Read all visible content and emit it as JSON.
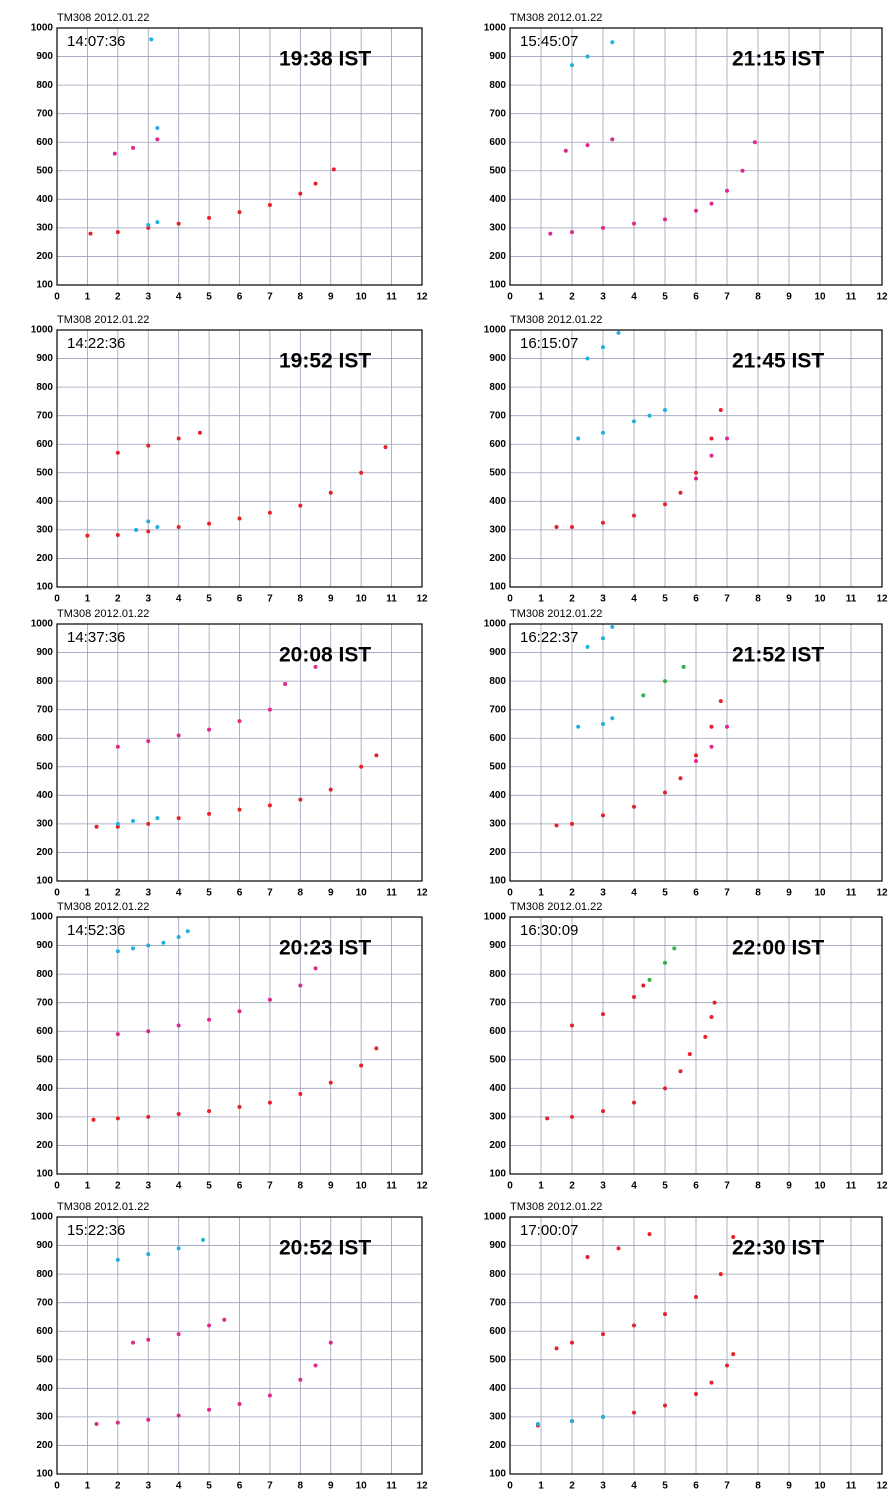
{
  "chart_data": [
    {
      "type": "scatter",
      "title": "TM308 2012.01.22",
      "annotations": [
        "14:07:36",
        "19:38 IST"
      ],
      "xlim": [
        0,
        12
      ],
      "ylim": [
        100,
        1000
      ],
      "xticks": [
        0,
        1,
        2,
        3,
        4,
        5,
        6,
        7,
        8,
        9,
        10,
        11,
        12
      ],
      "yticks": [
        100,
        200,
        300,
        400,
        500,
        600,
        700,
        800,
        900,
        1000
      ],
      "grid": true,
      "series": [
        {
          "color": "#e8202a",
          "x": [
            1.1,
            2,
            3,
            4,
            5,
            6,
            7,
            8,
            8.5,
            9.1
          ],
          "values": [
            280,
            285,
            300,
            315,
            335,
            355,
            380,
            420,
            455,
            505
          ]
        },
        {
          "color": "#e0288c",
          "x": [
            1.9,
            2.5,
            3.3
          ],
          "values": [
            560,
            580,
            610
          ]
        },
        {
          "color": "#1fb0e0",
          "x": [
            3,
            3.3,
            3.3,
            3.1
          ],
          "values": [
            310,
            320,
            650,
            960
          ]
        }
      ]
    },
    {
      "type": "scatter",
      "title": "TM308 2012.01.22",
      "annotations": [
        "15:45:07",
        "21:15 IST"
      ],
      "xlim": [
        0,
        12
      ],
      "ylim": [
        100,
        1000
      ],
      "xticks": [
        0,
        1,
        2,
        3,
        4,
        5,
        6,
        7,
        8,
        9,
        10,
        11,
        12
      ],
      "yticks": [
        100,
        200,
        300,
        400,
        500,
        600,
        700,
        800,
        900,
        1000
      ],
      "grid": true,
      "series": [
        {
          "color": "#e0288c",
          "x": [
            1.3,
            2,
            3,
            4,
            5,
            6,
            6.5,
            7,
            7.5,
            7.9
          ],
          "values": [
            280,
            285,
            300,
            315,
            330,
            360,
            385,
            430,
            500,
            600
          ]
        },
        {
          "color": "#e0288c",
          "x": [
            1.8,
            2.5,
            3.3
          ],
          "values": [
            570,
            590,
            610
          ]
        },
        {
          "color": "#1fb0e0",
          "x": [
            2,
            2.5,
            3.3
          ],
          "values": [
            870,
            900,
            950
          ]
        }
      ]
    },
    {
      "type": "scatter",
      "title": "TM308 2012.01.22",
      "annotations": [
        "14:22:36",
        "19:52 IST"
      ],
      "xlim": [
        0,
        12
      ],
      "ylim": [
        100,
        1000
      ],
      "xticks": [
        0,
        1,
        2,
        3,
        4,
        5,
        6,
        7,
        8,
        9,
        10,
        11,
        12
      ],
      "yticks": [
        100,
        200,
        300,
        400,
        500,
        600,
        700,
        800,
        900,
        1000
      ],
      "grid": true,
      "series": [
        {
          "color": "#e8202a",
          "x": [
            1,
            2,
            3,
            4,
            5,
            6,
            7,
            8,
            9,
            10,
            10.8
          ],
          "values": [
            280,
            282,
            295,
            310,
            322,
            340,
            360,
            385,
            430,
            500,
            590
          ]
        },
        {
          "color": "#e8202a",
          "x": [
            2,
            3,
            4,
            4.7
          ],
          "values": [
            570,
            595,
            620,
            640
          ]
        },
        {
          "color": "#1fb0e0",
          "x": [
            2.6,
            3,
            3.3
          ],
          "values": [
            300,
            330,
            310
          ]
        }
      ]
    },
    {
      "type": "scatter",
      "title": "TM308 2012.01.22",
      "annotations": [
        "16:15:07",
        "21:45 IST"
      ],
      "xlim": [
        0,
        12
      ],
      "ylim": [
        100,
        1000
      ],
      "xticks": [
        0,
        1,
        2,
        3,
        4,
        5,
        6,
        7,
        8,
        9,
        10,
        11,
        12
      ],
      "yticks": [
        100,
        200,
        300,
        400,
        500,
        600,
        700,
        800,
        900,
        1000
      ],
      "grid": true,
      "series": [
        {
          "color": "#e8202a",
          "x": [
            1.5,
            2,
            3,
            4,
            5,
            5.5,
            6,
            6.5,
            6.8
          ],
          "values": [
            310,
            310,
            325,
            350,
            390,
            430,
            500,
            620,
            720
          ]
        },
        {
          "color": "#e0288c",
          "x": [
            6,
            6.5,
            7
          ],
          "values": [
            480,
            560,
            620
          ]
        },
        {
          "color": "#1fb0e0",
          "x": [
            2.2,
            3,
            4,
            4.5,
            5
          ],
          "values": [
            620,
            640,
            680,
            700,
            720
          ]
        },
        {
          "color": "#1fb0e0",
          "x": [
            2.5,
            3,
            3.5
          ],
          "values": [
            900,
            940,
            990
          ]
        }
      ]
    },
    {
      "type": "scatter",
      "title": "TM308 2012.01.22",
      "annotations": [
        "14:37:36",
        "20:08 IST"
      ],
      "xlim": [
        0,
        12
      ],
      "ylim": [
        100,
        1000
      ],
      "xticks": [
        0,
        1,
        2,
        3,
        4,
        5,
        6,
        7,
        8,
        9,
        10,
        11,
        12
      ],
      "yticks": [
        100,
        200,
        300,
        400,
        500,
        600,
        700,
        800,
        900,
        1000
      ],
      "grid": true,
      "series": [
        {
          "color": "#e8202a",
          "x": [
            1.3,
            2,
            3,
            4,
            5,
            6,
            7,
            8,
            9,
            10,
            10.5
          ],
          "values": [
            290,
            290,
            300,
            320,
            335,
            350,
            365,
            385,
            420,
            500,
            540
          ]
        },
        {
          "color": "#e0288c",
          "x": [
            2,
            3,
            4,
            5,
            6,
            7,
            7.5,
            8.5
          ],
          "values": [
            570,
            590,
            610,
            630,
            660,
            700,
            790,
            850
          ]
        },
        {
          "color": "#1fb0e0",
          "x": [
            2,
            2.5,
            3.3
          ],
          "values": [
            300,
            310,
            320
          ]
        }
      ]
    },
    {
      "type": "scatter",
      "title": "TM308 2012.01.22",
      "annotations": [
        "16:22:37",
        "21:52 IST"
      ],
      "xlim": [
        0,
        12
      ],
      "ylim": [
        100,
        1000
      ],
      "xticks": [
        0,
        1,
        2,
        3,
        4,
        5,
        6,
        7,
        8,
        9,
        10,
        11,
        12
      ],
      "yticks": [
        100,
        200,
        300,
        400,
        500,
        600,
        700,
        800,
        900,
        1000
      ],
      "grid": true,
      "series": [
        {
          "color": "#e8202a",
          "x": [
            1.5,
            2,
            3,
            4,
            5,
            5.5,
            6,
            6.5,
            6.8
          ],
          "values": [
            295,
            300,
            330,
            360,
            410,
            460,
            540,
            640,
            730
          ]
        },
        {
          "color": "#e0288c",
          "x": [
            6,
            6.5,
            7
          ],
          "values": [
            520,
            570,
            640
          ]
        },
        {
          "color": "#1fb0e0",
          "x": [
            2.2,
            3,
            3.3
          ],
          "values": [
            640,
            650,
            670
          ]
        },
        {
          "color": "#2fb04a",
          "x": [
            4.3,
            5,
            5.6
          ],
          "values": [
            750,
            800,
            850
          ]
        },
        {
          "color": "#1fb0e0",
          "x": [
            2.5,
            3,
            3.3
          ],
          "values": [
            920,
            950,
            990
          ]
        }
      ]
    },
    {
      "type": "scatter",
      "title": "TM308 2012.01.22",
      "annotations": [
        "14:52:36",
        "20:23 IST"
      ],
      "xlim": [
        0,
        12
      ],
      "ylim": [
        100,
        1000
      ],
      "xticks": [
        0,
        1,
        2,
        3,
        4,
        5,
        6,
        7,
        8,
        9,
        10,
        11,
        12
      ],
      "yticks": [
        100,
        200,
        300,
        400,
        500,
        600,
        700,
        800,
        900,
        1000
      ],
      "grid": true,
      "series": [
        {
          "color": "#e8202a",
          "x": [
            1.2,
            2,
            3,
            4,
            5,
            6,
            7,
            8,
            9,
            10,
            10.5
          ],
          "values": [
            290,
            295,
            300,
            310,
            320,
            335,
            350,
            380,
            420,
            480,
            540
          ]
        },
        {
          "color": "#e0288c",
          "x": [
            2,
            3,
            4,
            5,
            6,
            7,
            8,
            8.5
          ],
          "values": [
            590,
            600,
            620,
            640,
            670,
            710,
            760,
            820
          ]
        },
        {
          "color": "#1fb0e0",
          "x": [
            2,
            2.5,
            3,
            3.5,
            4,
            4.3
          ],
          "values": [
            880,
            890,
            900,
            910,
            930,
            950
          ]
        }
      ]
    },
    {
      "type": "scatter",
      "title": "TM308 2012.01.22",
      "annotations": [
        "16:30:09",
        "22:00 IST"
      ],
      "xlim": [
        0,
        12
      ],
      "ylim": [
        100,
        1000
      ],
      "xticks": [
        0,
        1,
        2,
        3,
        4,
        5,
        6,
        7,
        8,
        9,
        10,
        11,
        12
      ],
      "yticks": [
        100,
        200,
        300,
        400,
        500,
        600,
        700,
        800,
        900,
        1000
      ],
      "grid": true,
      "series": [
        {
          "color": "#e8202a",
          "x": [
            1.2,
            2,
            3,
            4,
            5,
            5.5,
            5.8
          ],
          "values": [
            295,
            300,
            320,
            350,
            400,
            460,
            520
          ]
        },
        {
          "color": "#e8202a",
          "x": [
            6.3,
            6.5,
            6.6
          ],
          "values": [
            580,
            650,
            700
          ]
        },
        {
          "color": "#e8202a",
          "x": [
            2,
            3,
            4,
            4.3
          ],
          "values": [
            620,
            660,
            720,
            760
          ]
        },
        {
          "color": "#2fb04a",
          "x": [
            4.5,
            5,
            5.3
          ],
          "values": [
            780,
            840,
            890
          ]
        }
      ]
    },
    {
      "type": "scatter",
      "title": "TM308 2012.01.22",
      "annotations": [
        "15:22:36",
        "20:52 IST"
      ],
      "xlim": [
        0,
        12
      ],
      "ylim": [
        100,
        1000
      ],
      "xticks": [
        0,
        1,
        2,
        3,
        4,
        5,
        6,
        7,
        8,
        9,
        10,
        11,
        12
      ],
      "yticks": [
        100,
        200,
        300,
        400,
        500,
        600,
        700,
        800,
        900,
        1000
      ],
      "grid": true,
      "series": [
        {
          "color": "#e0288c",
          "x": [
            1.3,
            2,
            3,
            4,
            5,
            6,
            7,
            8,
            8.5,
            9
          ],
          "values": [
            275,
            280,
            290,
            305,
            325,
            345,
            375,
            430,
            480,
            560
          ]
        },
        {
          "color": "#e0288c",
          "x": [
            2.5,
            3,
            4,
            5,
            5.5
          ],
          "values": [
            560,
            570,
            590,
            620,
            640
          ]
        },
        {
          "color": "#1fb0e0",
          "x": [
            2,
            3,
            4,
            4.8
          ],
          "values": [
            850,
            870,
            890,
            920
          ]
        }
      ]
    },
    {
      "type": "scatter",
      "title": "TM308 2012.01.22",
      "annotations": [
        "17:00:07",
        "22:30 IST"
      ],
      "xlim": [
        0,
        12
      ],
      "ylim": [
        100,
        1000
      ],
      "xticks": [
        0,
        1,
        2,
        3,
        4,
        5,
        6,
        7,
        8,
        9,
        10,
        11,
        12
      ],
      "yticks": [
        100,
        200,
        300,
        400,
        500,
        600,
        700,
        800,
        900,
        1000
      ],
      "grid": true,
      "series": [
        {
          "color": "#e8202a",
          "x": [
            0.9,
            2,
            3,
            4,
            5,
            6,
            6.5,
            7,
            7.2
          ],
          "values": [
            270,
            285,
            300,
            315,
            340,
            380,
            420,
            480,
            520
          ]
        },
        {
          "color": "#e8202a",
          "x": [
            1.5,
            2,
            3,
            4,
            5,
            6,
            6.8,
            7.2
          ],
          "values": [
            540,
            560,
            590,
            620,
            660,
            720,
            800,
            930
          ]
        },
        {
          "color": "#1fb0e0",
          "x": [
            0.9,
            2,
            3
          ],
          "values": [
            275,
            285,
            300
          ]
        },
        {
          "color": "#e8202a",
          "x": [
            2.5,
            3.5,
            4.5
          ],
          "values": [
            860,
            890,
            940
          ]
        }
      ]
    }
  ]
}
